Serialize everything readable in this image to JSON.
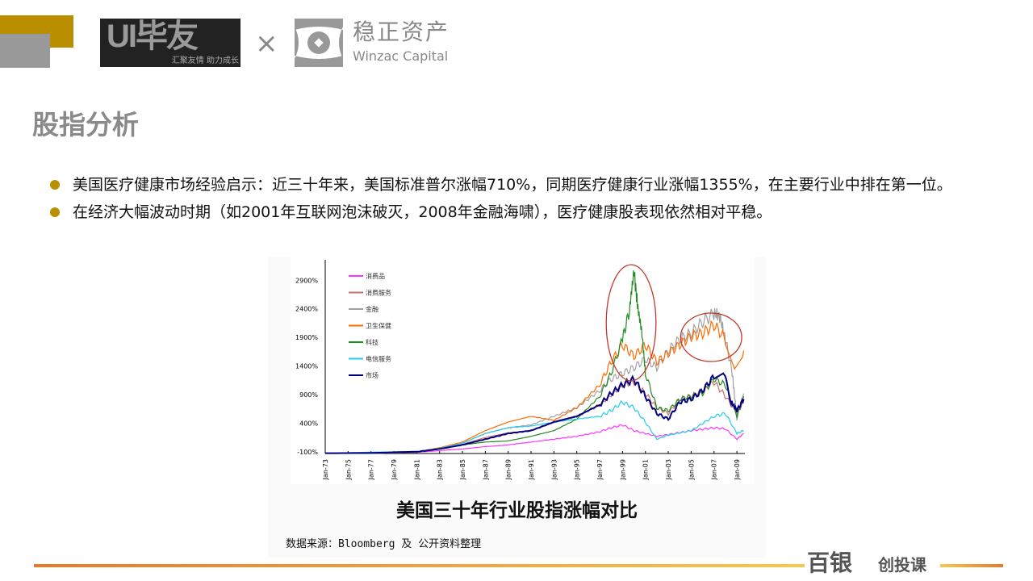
{
  "header": {
    "ui_logo_main": "UI毕友",
    "ui_logo_tagline": "汇聚友情 助力成长",
    "times": "×",
    "partner_cn": "稳正资产",
    "partner_en": "Winzac Capital"
  },
  "title": "股指分析",
  "bullets": [
    "美国医疗健康市场经验启示：近三十年来，美国标准普尔涨幅710%，同期医疗健康行业涨幅1355%，在主要行业中排在第一位。",
    "在经济大幅波动时期（如2001年互联网泡沫破灭，2008年金融海啸），医疗健康股表现依然相对平稳。"
  ],
  "figure": {
    "caption": "美国三十年行业股指涨幅对比",
    "source": "数据来源：Bloomberg 及 公开资料整理"
  },
  "footer": {
    "brand": "百银",
    "brand_sub": "创投课"
  },
  "chart_data": {
    "type": "line",
    "ylim": [
      -100,
      3200
    ],
    "yticks": [
      "-100%",
      "400%",
      "900%",
      "1400%",
      "1900%",
      "2400%",
      "2900%"
    ],
    "ytick_values": [
      -100,
      400,
      900,
      1400,
      1900,
      2400,
      2900
    ],
    "xlim": [
      1973,
      2009.7
    ],
    "xticks": [
      "Jan-73",
      "Jan-75",
      "Jan-77",
      "Jan-79",
      "Jan-81",
      "Jan-83",
      "Jan-85",
      "Jan-87",
      "Jan-89",
      "Jan-91",
      "Jan-93",
      "Jan-95",
      "Jan-97",
      "Jan-99",
      "Jan-01",
      "Jan-03",
      "Jan-05",
      "Jan-07",
      "Jan-09"
    ],
    "xtick_values": [
      1973,
      1975,
      1977,
      1979,
      1981,
      1983,
      1985,
      1987,
      1989,
      1991,
      1993,
      1995,
      1997,
      1999,
      2001,
      2003,
      2005,
      2007,
      2009
    ],
    "legend_position": "top-left",
    "annotations": [
      {
        "shape": "ellipse",
        "around": [
          1998,
          2001.5
        ],
        "color": "#c0392b"
      },
      {
        "shape": "ellipse",
        "around": [
          2004.5,
          2009
        ],
        "color": "#c0392b"
      }
    ],
    "series": [
      {
        "name": "消费品",
        "color": "#ff33ff",
        "x": [
          1973,
          1977,
          1981,
          1983,
          1985,
          1987,
          1989,
          1991,
          1993,
          1995,
          1997,
          1998,
          1999,
          2000,
          2001,
          2002,
          2003,
          2005,
          2007,
          2008,
          2009,
          2009.6
        ],
        "values": [
          -100,
          -90,
          -80,
          -50,
          -20,
          20,
          50,
          100,
          150,
          200,
          280,
          350,
          400,
          300,
          250,
          200,
          230,
          300,
          350,
          330,
          150,
          250
        ]
      },
      {
        "name": "消费服务",
        "color": "#c97070",
        "x": [
          1973,
          1977,
          1981,
          1983,
          1985,
          1987,
          1989,
          1991,
          1993,
          1995,
          1997,
          1999,
          2000,
          2001,
          2002,
          2003,
          2004,
          2005,
          2006,
          2007,
          2008,
          2009,
          2009.6
        ],
        "values": [
          -100,
          -100,
          -80,
          -20,
          60,
          180,
          260,
          300,
          450,
          550,
          750,
          1100,
          1150,
          950,
          700,
          600,
          850,
          900,
          1000,
          1150,
          900,
          600,
          800
        ]
      },
      {
        "name": "金融",
        "color": "#a0a0a0",
        "x": [
          1973,
          1977,
          1981,
          1983,
          1985,
          1987,
          1989,
          1991,
          1993,
          1995,
          1997,
          1998,
          1999,
          2000,
          2001,
          2002,
          2003,
          2004,
          2005,
          2006,
          2007,
          2007.5,
          2008,
          2008.6,
          2009,
          2009.6
        ],
        "values": [
          -100,
          -100,
          -80,
          -10,
          80,
          250,
          350,
          400,
          550,
          700,
          1000,
          1200,
          1300,
          1400,
          1550,
          1400,
          1700,
          1900,
          2000,
          2200,
          2350,
          2300,
          1900,
          1300,
          500,
          950
        ]
      },
      {
        "name": "卫生保健",
        "color": "#ff6a00",
        "x": [
          1973,
          1977,
          1981,
          1983,
          1985,
          1987,
          1989,
          1991,
          1993,
          1995,
          1997,
          1998,
          1999,
          2000,
          2001,
          2002,
          2003,
          2004,
          2005,
          2006,
          2007,
          2008,
          2008.8,
          2009.6
        ],
        "values": [
          -100,
          -90,
          -70,
          0,
          100,
          300,
          450,
          550,
          480,
          700,
          1100,
          1500,
          1800,
          1600,
          1800,
          1500,
          1650,
          1800,
          1950,
          2000,
          2150,
          1900,
          1450,
          1700
        ]
      },
      {
        "name": "科技",
        "color": "#228b22",
        "x": [
          1973,
          1977,
          1981,
          1983,
          1985,
          1987,
          1989,
          1991,
          1993,
          1995,
          1997,
          1998,
          1999,
          1999.6,
          2000,
          2000.3,
          2000.7,
          2001,
          2002,
          2003,
          2004,
          2005,
          2006,
          2007,
          2008,
          2009,
          2009.6
        ],
        "values": [
          -100,
          -100,
          -70,
          -10,
          50,
          100,
          120,
          200,
          300,
          500,
          900,
          1300,
          1900,
          2400,
          3100,
          2500,
          2000,
          1300,
          700,
          650,
          850,
          900,
          950,
          1200,
          1100,
          550,
          900
        ]
      },
      {
        "name": "电信服务",
        "color": "#22ccee",
        "x": [
          1973,
          1977,
          1981,
          1983,
          1985,
          1987,
          1989,
          1991,
          1993,
          1995,
          1997,
          1998,
          1999,
          2000,
          2001,
          2002,
          2003,
          2005,
          2007,
          2008,
          2009,
          2009.6
        ],
        "values": [
          -100,
          -80,
          -70,
          -10,
          80,
          250,
          350,
          380,
          450,
          500,
          550,
          650,
          800,
          700,
          450,
          150,
          220,
          300,
          550,
          600,
          250,
          300
        ]
      },
      {
        "name": "市场",
        "color": "#000080",
        "x": [
          1973,
          1977,
          1981,
          1983,
          1985,
          1987,
          1989,
          1991,
          1993,
          1995,
          1997,
          1998,
          1999,
          2000,
          2001,
          2002,
          2003,
          2004,
          2005,
          2006,
          2007,
          2007.8,
          2008.5,
          2009,
          2009.6
        ],
        "values": [
          -100,
          -95,
          -70,
          -20,
          50,
          150,
          250,
          300,
          450,
          550,
          750,
          950,
          1100,
          1200,
          900,
          600,
          500,
          800,
          850,
          1000,
          1250,
          1350,
          800,
          650,
          850
        ]
      }
    ]
  }
}
